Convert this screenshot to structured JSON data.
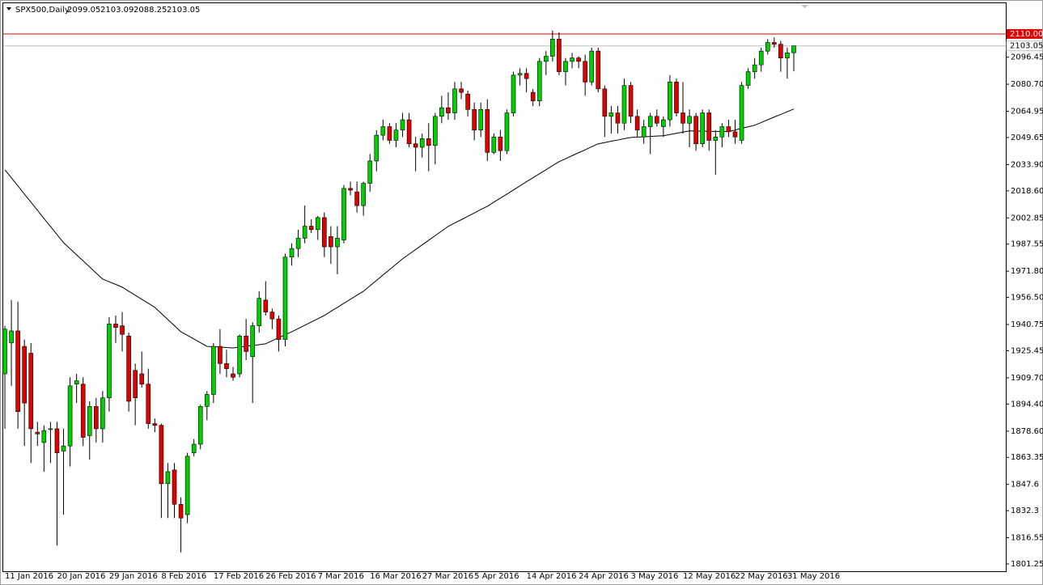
{
  "chart_data": {
    "type": "candlestick",
    "title": "SPX500,Daily",
    "categories": [
      "11 Jan 2016",
      null,
      null,
      null,
      null,
      null,
      null,
      null,
      "20 Jan 2016",
      null,
      null,
      null,
      null,
      null,
      null,
      null,
      "29 Jan 2016",
      null,
      null,
      null,
      null,
      null,
      null,
      null,
      "8 Feb 2016",
      null,
      null,
      null,
      null,
      null,
      null,
      null,
      "17 Feb 2016",
      null,
      null,
      null,
      null,
      null,
      null,
      null,
      "26 Feb 2016",
      null,
      null,
      null,
      null,
      null,
      null,
      null,
      "7 Mar 2016",
      null,
      null,
      null,
      null,
      null,
      null,
      null,
      "16 Mar 2016",
      null,
      null,
      null,
      null,
      null,
      null,
      null,
      "27 Mar 2016",
      null,
      null,
      null,
      null,
      null,
      null,
      null,
      "5 Apr 2016",
      null,
      null,
      null,
      null,
      null,
      null,
      null,
      "14 Apr 2016",
      null,
      null,
      null,
      null,
      null,
      null,
      null,
      "24 Apr 2016",
      null,
      null,
      null,
      null,
      null,
      null,
      null,
      "3 May 2016",
      null,
      null,
      null,
      null,
      null,
      null,
      null,
      "12 May 2016",
      null,
      null,
      null,
      null,
      null,
      null,
      null,
      "22 May 2016",
      null,
      null,
      null,
      null,
      null,
      null,
      null,
      "31 May 2016",
      null
    ],
    "open": [
      1912,
      1930,
      1937,
      1928,
      1924,
      1878,
      1872,
      1880,
      1880,
      1867,
      1870,
      1906,
      1906,
      1876,
      1893,
      1880,
      1898,
      1941,
      1940,
      1934,
      1914,
      1912,
      1906,
      1883,
      1882,
      1848,
      1856,
      1836,
      1830,
      1866,
      1871,
      1893,
      1900,
      1928,
      1918,
      1912,
      1912,
      1934,
      1922,
      1940,
      1955,
      1948,
      1944,
      1932,
      1980,
      1985,
      1991,
      1998,
      1996,
      2003,
      1992,
      1986,
      1990,
      2020,
      2018,
      2010,
      2023,
      2036,
      2051,
      2056,
      2048,
      2054,
      2060,
      2046,
      2044,
      2049,
      2045,
      2062,
      2067,
      2064,
      2078,
      2075,
      2066,
      2054,
      2066,
      2041,
      2050,
      2042,
      2064,
      2086,
      2087,
      2076,
      2071,
      2094,
      2097,
      2107,
      2088,
      2094,
      2096,
      2094,
      2082,
      2100,
      2078,
      2062,
      2064,
      2058,
      2080,
      2062,
      2050,
      2056,
      2062,
      2056,
      2060,
      2082,
      2064,
      2058,
      2062,
      2046,
      2064,
      2048,
      2050,
      2056,
      2053,
      2048,
      2080,
      2088,
      2092,
      2100,
      2105,
      2104,
      2096,
      2099.05
    ],
    "high": [
      1940,
      1955,
      1954,
      1932,
      1930,
      1884,
      1882,
      1884,
      1884,
      1880,
      1910,
      1912,
      1910,
      1896,
      1898,
      1902,
      1945,
      1946,
      1948,
      1936,
      1918,
      1925,
      1915,
      1886,
      1883,
      1860,
      1860,
      1840,
      1866,
      1874,
      1894,
      1902,
      1930,
      1938,
      1926,
      1916,
      1935,
      1944,
      1942,
      1960,
      1966,
      1950,
      1946,
      1982,
      1988,
      1996,
      2010,
      2002,
      2004,
      2006,
      1998,
      1998,
      2022,
      2024,
      2024,
      2024,
      2040,
      2054,
      2060,
      2058,
      2058,
      2064,
      2064,
      2050,
      2052,
      2058,
      2064,
      2074,
      2076,
      2082,
      2082,
      2077,
      2070,
      2070,
      2072,
      2052,
      2054,
      2066,
      2088,
      2090,
      2090,
      2078,
      2096,
      2100,
      2112,
      2111,
      2096,
      2099,
      2097,
      2098,
      2102,
      2102,
      2080,
      2068,
      2068,
      2084,
      2082,
      2066,
      2060,
      2064,
      2066,
      2062,
      2086,
      2084,
      2082,
      2066,
      2064,
      2066,
      2066,
      2054,
      2058,
      2060,
      2060,
      2082,
      2090,
      2096,
      2102,
      2107,
      2108,
      2106,
      2102,
      2103.09
    ],
    "low": [
      1880,
      1905,
      1880,
      1870,
      1860,
      1870,
      1855,
      1860,
      1812,
      1830,
      1858,
      1895,
      1870,
      1862,
      1872,
      1872,
      1890,
      1930,
      1925,
      1890,
      1882,
      1904,
      1880,
      1878,
      1828,
      1828,
      1828,
      1808,
      1825,
      1864,
      1868,
      1885,
      1895,
      1912,
      1910,
      1908,
      1910,
      1920,
      1895,
      1936,
      1946,
      1938,
      1925,
      1928,
      1975,
      1980,
      1988,
      1994,
      1990,
      1980,
      1976,
      1970,
      1988,
      2016,
      2006,
      2004,
      2018,
      2030,
      2048,
      2046,
      2044,
      2050,
      2044,
      2030,
      2038,
      2030,
      2034,
      2058,
      2060,
      2060,
      2072,
      2062,
      2048,
      2050,
      2036,
      2040,
      2036,
      2040,
      2062,
      2080,
      2076,
      2068,
      2068,
      2086,
      2094,
      2086,
      2080,
      2090,
      2090,
      2074,
      2080,
      2076,
      2050,
      2052,
      2052,
      2054,
      2058,
      2050,
      2046,
      2040,
      2056,
      2050,
      2056,
      2062,
      2052,
      2044,
      2042,
      2044,
      2042,
      2028,
      2044,
      2050,
      2046,
      2046,
      2078,
      2084,
      2088,
      2098,
      2102,
      2088,
      2084,
      2088.25
    ],
    "close": [
      1938,
      1937,
      1890,
      1895,
      1880,
      1877,
      1879,
      1880,
      1866,
      1870,
      1905,
      1908,
      1875,
      1893,
      1880,
      1898,
      1941,
      1939,
      1935,
      1896,
      1898,
      1906,
      1883,
      1882,
      1848,
      1855,
      1836,
      1828,
      1864,
      1871,
      1893,
      1900,
      1928,
      1918,
      1915,
      1910,
      1934,
      1925,
      1940,
      1956,
      1948,
      1944,
      1932,
      1980,
      1985,
      1991,
      1998,
      1996,
      2003,
      1986,
      1986,
      1991,
      2020,
      2019,
      2010,
      2023,
      2036,
      2051,
      2056,
      2048,
      2054,
      2060,
      2046,
      2044,
      2049,
      2045,
      2062,
      2067,
      2064,
      2078,
      2076,
      2066,
      2054,
      2066,
      2041,
      2050,
      2042,
      2064,
      2086,
      2087,
      2084,
      2071,
      2094,
      2097,
      2107,
      2088,
      2094,
      2096,
      2094,
      2082,
      2100,
      2078,
      2062,
      2064,
      2058,
      2080,
      2062,
      2054,
      2056,
      2062,
      2058,
      2060,
      2082,
      2064,
      2058,
      2062,
      2046,
      2064,
      2048,
      2050,
      2056,
      2053,
      2050,
      2080,
      2088,
      2092,
      2100,
      2105,
      2104,
      2096,
      2099,
      2103.05
    ],
    "moving_average": [
      2030.9,
      2026.2,
      2021.5,
      2016.7,
      2012.0,
      2007.3,
      2002.5,
      1997.8,
      1993.1,
      1988.4,
      1984.9,
      1981.3,
      1977.8,
      1974.3,
      1970.7,
      1967.2,
      1965.6,
      1964.1,
      1962.5,
      1960.1,
      1957.8,
      1955.4,
      1953.1,
      1950.7,
      1947.2,
      1943.6,
      1940.1,
      1936.5,
      1934.4,
      1932.3,
      1930.1,
      1928.0,
      1927.8,
      1927.6,
      1927.3,
      1927.1,
      1927.6,
      1928.1,
      1928.5,
      1929.0,
      1929.5,
      1931.3,
      1933.0,
      1934.8,
      1936.5,
      1938.4,
      1940.3,
      1942.2,
      1944.1,
      1946.0,
      1948.4,
      1950.7,
      1953.1,
      1955.4,
      1957.8,
      1960.1,
      1963.3,
      1966.4,
      1969.6,
      1972.7,
      1975.9,
      1979.0,
      1981.7,
      1984.4,
      1987.1,
      1989.8,
      1992.5,
      1995.2,
      1997.9,
      1999.9,
      2001.8,
      2003.8,
      2005.7,
      2007.7,
      2009.6,
      2012.0,
      2014.4,
      2016.7,
      2019.1,
      2021.5,
      2023.9,
      2026.2,
      2028.6,
      2030.9,
      2033.3,
      2035.6,
      2037.3,
      2039.1,
      2040.8,
      2042.5,
      2044.3,
      2046.0,
      2046.7,
      2047.5,
      2048.2,
      2049.0,
      2049.7,
      2049.9,
      2050.1,
      2050.3,
      2050.5,
      2050.7,
      2051.4,
      2052.1,
      2052.8,
      2053.5,
      2053.4,
      2053.4,
      2053.3,
      2053.2,
      2053.2,
      2053.1,
      2054.0,
      2055.0,
      2055.9,
      2056.8,
      2058.4,
      2060.0,
      2061.6,
      2063.1,
      2064.7,
      2066.3
    ],
    "ylim": [
      1797,
      2126
    ],
    "yticks": [
      1801.25,
      1816.55,
      1832.3,
      1847.6,
      1863.35,
      {
        "value": 1878.6,
        "label": "1878.60"
      },
      {
        "value": 1894.4,
        "label": "1894.40"
      },
      {
        "value": 1909.7,
        "label": "1909.70"
      },
      1925.45,
      1940.75,
      {
        "value": 1956.5,
        "label": "1956.50"
      },
      {
        "value": 1971.8,
        "label": "1971.80"
      },
      1987.55,
      2002.85,
      {
        "value": 2018.6,
        "label": "2018.60"
      },
      {
        "value": 2033.9,
        "label": "2033.90"
      },
      2049.65,
      2064.95,
      {
        "value": 2080.7,
        "label": "2080.70"
      },
      2096.45
    ],
    "hline": {
      "value": 2110,
      "label": "2110.00"
    },
    "last_price": 2103.05,
    "up_color": "#00d000",
    "down_color": "#e00000",
    "ma_color": "#000000",
    "hline_color": "#e00000",
    "grid": false
  }
}
